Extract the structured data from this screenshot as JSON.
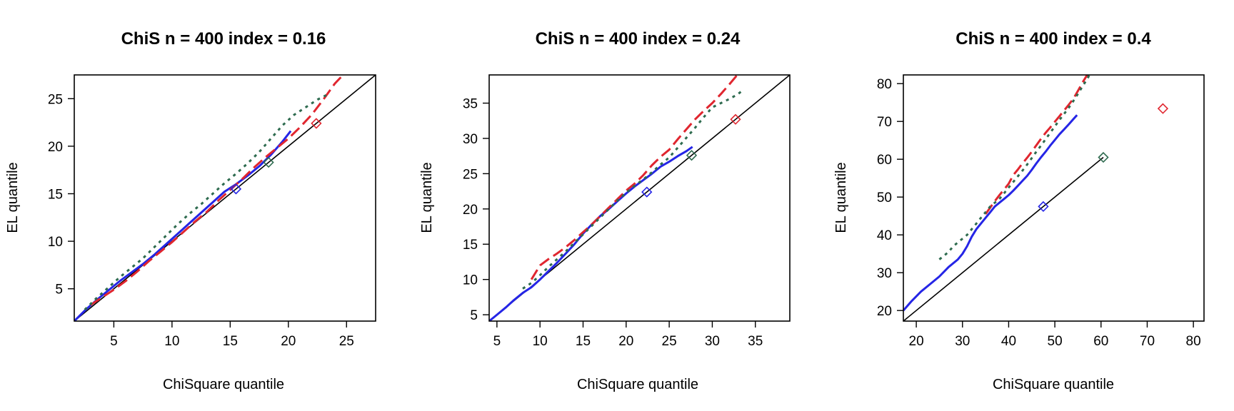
{
  "chart_data": [
    {
      "type": "line",
      "title": "ChiS n = 400 index = 0.16",
      "xlabel": "ChiSquare quantile",
      "ylabel": "EL quantile",
      "xlim": [
        1.6,
        27.5
      ],
      "ylim": [
        1.6,
        27.5
      ],
      "xticks": [
        5,
        10,
        15,
        20,
        25
      ],
      "yticks": [
        5,
        10,
        15,
        20,
        25
      ],
      "grid": false,
      "reference_line": [
        [
          1.6,
          1.6
        ],
        [
          27.5,
          27.5
        ]
      ],
      "series": [
        {
          "color": "#2525e6",
          "style": "solid",
          "x": [
            1.6,
            2.5,
            3.5,
            4.5,
            5.5,
            6.5,
            7.5,
            8.5,
            9.5,
            10.5,
            11.5,
            12.5,
            13.5,
            14.5,
            15.5,
            16.5,
            17.5,
            18.5,
            19.5,
            20.2
          ],
          "y": [
            1.6,
            2.7,
            3.8,
            4.8,
            5.8,
            6.7,
            7.6,
            8.6,
            9.7,
            10.8,
            11.9,
            13.0,
            14.1,
            15.2,
            16.0,
            16.9,
            17.9,
            19.1,
            20.5,
            21.6
          ]
        },
        {
          "color": "#e0262f",
          "style": "dashed",
          "x": [
            3.0,
            4.0,
            5.0,
            6.0,
            7.0,
            8.0,
            9.0,
            10.0,
            11.0,
            12.0,
            13.0,
            14.0,
            15.0,
            16.0,
            17.0,
            18.0,
            19.0,
            20.0,
            21.0,
            22.0,
            23.0,
            24.0,
            24.7
          ],
          "y": [
            3.3,
            4.1,
            4.9,
            5.8,
            6.8,
            7.9,
            8.9,
            9.9,
            11.0,
            12.1,
            13.1,
            14.3,
            15.4,
            16.5,
            17.7,
            18.8,
            19.8,
            20.8,
            22.0,
            23.3,
            24.9,
            26.6,
            27.5
          ]
        },
        {
          "color": "#2e6b4f",
          "style": "dotted",
          "x": [
            2.5,
            3.5,
            4.5,
            5.5,
            6.5,
            7.5,
            8.5,
            9.5,
            10.5,
            11.5,
            12.5,
            13.5,
            14.5,
            15.5,
            16.5,
            17.5,
            18.5,
            19.5,
            20.5,
            21.5,
            22.5,
            23.3
          ],
          "y": [
            2.8,
            4.0,
            5.1,
            6.2,
            7.2,
            8.2,
            9.4,
            10.6,
            11.8,
            12.9,
            13.9,
            15.0,
            16.1,
            17.1,
            18.2,
            19.4,
            20.8,
            22.2,
            23.3,
            24.1,
            24.9,
            25.4
          ]
        }
      ],
      "markers": [
        {
          "color": "#2525e6",
          "x": 15.5,
          "y": 15.5
        },
        {
          "color": "#2e6b4f",
          "x": 18.3,
          "y": 18.3
        },
        {
          "color": "#e0262f",
          "x": 22.4,
          "y": 22.4
        }
      ]
    },
    {
      "type": "line",
      "title": "ChiS n = 400 index = 0.24",
      "xlabel": "ChiSquare quantile",
      "ylabel": "EL quantile",
      "xlim": [
        4.1,
        39.0
      ],
      "ylim": [
        4.1,
        39.0
      ],
      "xticks": [
        5,
        10,
        15,
        20,
        25,
        30,
        35
      ],
      "yticks": [
        5,
        10,
        15,
        20,
        25,
        30,
        35
      ],
      "grid": false,
      "reference_line": [
        [
          4.1,
          4.1
        ],
        [
          39.0,
          39.0
        ]
      ],
      "series": [
        {
          "color": "#2525e6",
          "style": "solid",
          "x": [
            4.1,
            5,
            6,
            7,
            8,
            9,
            10,
            11,
            12,
            13,
            14,
            15,
            16,
            17,
            18,
            19,
            20,
            21,
            22,
            23,
            24,
            25,
            26,
            27,
            27.7
          ],
          "y": [
            4.1,
            5.0,
            6.0,
            7.1,
            8.1,
            8.9,
            10.0,
            11.2,
            12.4,
            13.7,
            15.0,
            16.5,
            17.8,
            19.0,
            20.0,
            21.1,
            22.2,
            23.2,
            24.1,
            25.0,
            26.0,
            26.7,
            27.5,
            28.2,
            28.8
          ]
        },
        {
          "color": "#e0262f",
          "style": "dashed",
          "x": [
            9,
            10,
            11,
            12,
            13,
            14,
            15,
            16,
            17,
            18,
            19,
            20,
            21,
            22,
            23,
            24,
            25,
            26,
            27,
            28,
            29,
            30,
            31,
            32,
            32.9
          ],
          "y": [
            10.0,
            12.0,
            12.9,
            13.7,
            14.6,
            15.6,
            16.7,
            17.8,
            19.0,
            20.2,
            21.4,
            22.6,
            23.6,
            24.8,
            26.2,
            27.4,
            28.4,
            29.9,
            31.3,
            32.7,
            33.9,
            35.0,
            36.3,
            37.7,
            39.0
          ]
        },
        {
          "color": "#2e6b4f",
          "style": "dotted",
          "x": [
            8,
            9,
            10,
            11,
            12,
            13,
            14,
            15,
            16,
            17,
            18,
            19,
            20,
            21,
            22,
            23,
            24,
            25,
            26,
            27,
            28,
            29,
            30,
            31,
            32,
            33,
            33.6
          ],
          "y": [
            8.7,
            9.5,
            10.6,
            11.8,
            12.9,
            14.0,
            15.2,
            16.4,
            17.6,
            18.8,
            20.0,
            21.2,
            22.3,
            23.3,
            24.2,
            25.2,
            26.3,
            27.3,
            28.7,
            30.1,
            31.5,
            33.0,
            34.4,
            35.0,
            35.6,
            36.3,
            36.9
          ]
        }
      ],
      "markers": [
        {
          "color": "#2525e6",
          "x": 22.4,
          "y": 22.4
        },
        {
          "color": "#2e6b4f",
          "x": 27.6,
          "y": 27.6
        },
        {
          "color": "#e0262f",
          "x": 32.7,
          "y": 32.7
        }
      ]
    },
    {
      "type": "line",
      "title": "ChiS n = 400 index = 0.4",
      "xlabel": "ChiSquare quantile",
      "ylabel": "EL quantile",
      "xlim": [
        17.2,
        82.3
      ],
      "ylim": [
        17.2,
        82.3
      ],
      "xticks": [
        20,
        30,
        40,
        50,
        60,
        70,
        80
      ],
      "yticks": [
        20,
        30,
        40,
        50,
        60,
        70,
        80
      ],
      "grid": false,
      "reference_line": [
        [
          17.2,
          17.2
        ],
        [
          60.5,
          60.5
        ]
      ],
      "series": [
        {
          "color": "#2525e6",
          "style": "solid",
          "x": [
            17.2,
            19,
            21,
            23,
            25,
            27,
            29,
            30,
            31,
            32,
            33,
            34,
            35,
            36,
            37,
            38,
            39,
            40,
            41,
            42,
            43,
            44,
            45,
            46,
            47,
            48,
            49,
            50,
            51,
            52,
            53,
            54,
            54.8
          ],
          "y": [
            20.0,
            22.5,
            25.0,
            27.0,
            29.0,
            31.5,
            33.5,
            35.0,
            37.0,
            39.5,
            41.5,
            43.0,
            44.5,
            46.0,
            47.5,
            48.5,
            49.5,
            50.5,
            51.7,
            53.0,
            54.3,
            55.6,
            57.2,
            58.9,
            60.5,
            62.0,
            63.6,
            65.1,
            66.6,
            67.9,
            69.2,
            70.6,
            71.7
          ]
        },
        {
          "color": "#e0262f",
          "style": "dashed",
          "x": [
            35,
            36,
            37,
            38,
            39,
            40,
            41,
            42,
            43,
            44,
            45,
            46,
            47,
            48,
            49,
            50,
            51,
            52,
            53,
            54,
            55,
            56,
            57
          ],
          "y": [
            45.5,
            47.2,
            48.9,
            50.5,
            52.0,
            53.5,
            55.8,
            57.3,
            58.9,
            60.4,
            62.0,
            63.7,
            65.4,
            67.0,
            68.4,
            69.9,
            71.4,
            72.9,
            74.4,
            76.0,
            78.1,
            80.3,
            82.3
          ]
        },
        {
          "color": "#2e6b4f",
          "style": "dotted",
          "x": [
            25,
            26,
            27,
            28,
            29,
            30,
            31,
            32,
            33,
            34,
            35,
            36,
            37,
            38,
            39,
            40,
            41,
            42,
            43,
            44,
            45,
            46,
            47,
            48,
            49,
            50,
            51,
            52,
            53,
            54,
            55,
            56,
            57,
            57.5
          ],
          "y": [
            33.5,
            34.5,
            35.5,
            37.0,
            38.0,
            39.0,
            40.0,
            41.5,
            43.0,
            44.5,
            46.0,
            47.5,
            48.5,
            49.5,
            51.0,
            52.5,
            54.0,
            55.5,
            57.0,
            58.6,
            60.3,
            62.0,
            63.6,
            65.3,
            67.0,
            68.7,
            70.4,
            72.0,
            73.6,
            75.4,
            77.3,
            79.3,
            81.2,
            82.3
          ]
        }
      ],
      "markers": [
        {
          "color": "#2525e6",
          "x": 47.5,
          "y": 47.5
        },
        {
          "color": "#2e6b4f",
          "x": 60.5,
          "y": 60.5
        },
        {
          "color": "#e0262f",
          "x": 73.4,
          "y": 73.4
        }
      ]
    }
  ]
}
